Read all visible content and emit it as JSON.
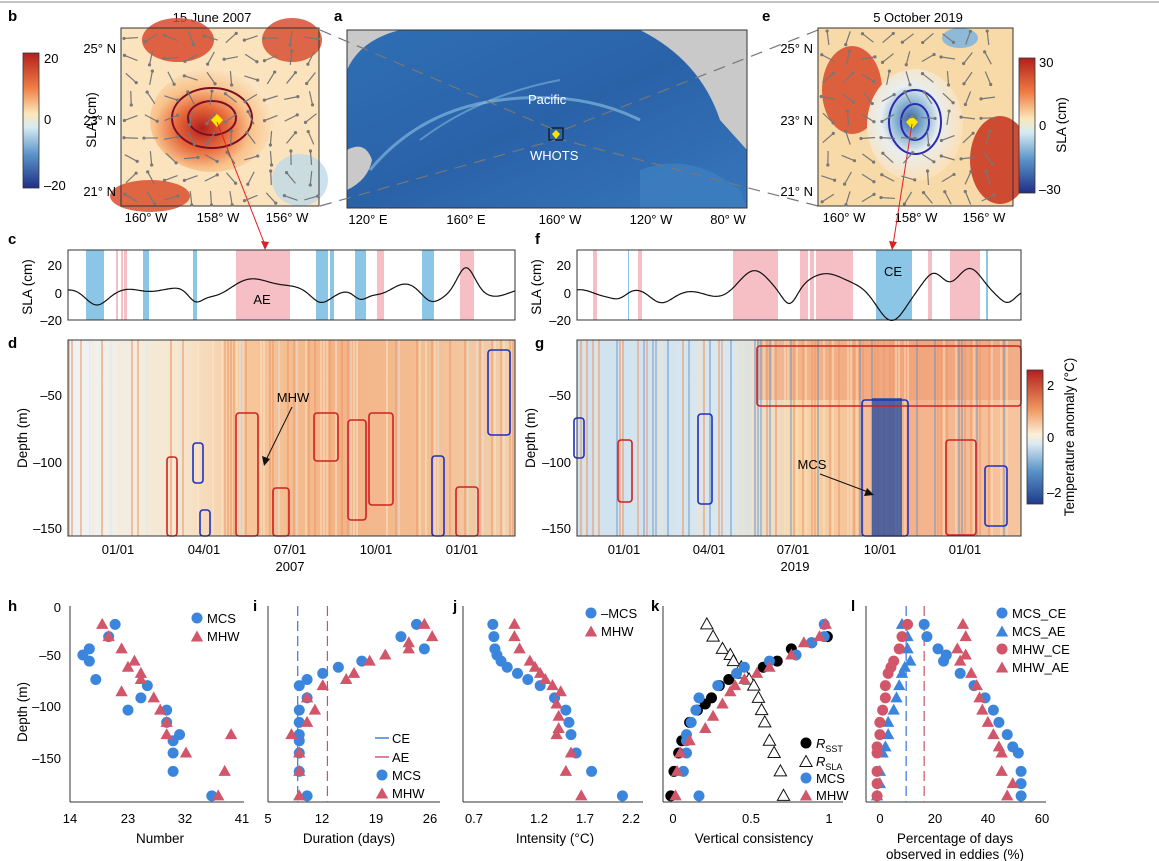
{
  "panels": {
    "a": {
      "letter": "a",
      "labels": [
        "Pacific",
        "WHOTS"
      ],
      "xticks": [
        "120° E",
        "160° E",
        "160° W",
        "120° W",
        "80° W"
      ]
    },
    "b": {
      "letter": "b",
      "date": "15 June 2007",
      "yticks": [
        "25° N",
        "23° N",
        "21° N"
      ],
      "xticks": [
        "160° W",
        "158° W",
        "156° W"
      ],
      "colorbar": {
        "label": "SLA (cm)",
        "ticks": [
          "20",
          "0",
          "–20"
        ]
      }
    },
    "e": {
      "letter": "e",
      "date": "5 October 2019",
      "yticks": [
        "25° N",
        "23° N",
        "21° N"
      ],
      "xticks": [
        "160° W",
        "158° W",
        "156° W"
      ],
      "colorbar": {
        "label": "SLA (cm)",
        "ticks": [
          "30",
          "0",
          "–30"
        ]
      }
    },
    "c": {
      "letter": "c",
      "ylabel": "SLA (cm)",
      "yticks": [
        "20",
        "0",
        "–20"
      ],
      "annotation": "AE"
    },
    "f": {
      "letter": "f",
      "ylabel": "SLA (cm)",
      "yticks": [
        "20",
        "0",
        "–20"
      ],
      "annotation": "CE"
    },
    "d": {
      "letter": "d",
      "ylabel": "Depth (m)",
      "yticks": [
        "–50",
        "–100",
        "–150"
      ],
      "xticks": [
        "01/01",
        "04/01",
        "07/01",
        "10/01",
        "01/01"
      ],
      "year": "2007",
      "annotation": "MHW"
    },
    "g": {
      "letter": "g",
      "ylabel": "Depth (m)",
      "yticks": [
        "–50",
        "–100",
        "–150"
      ],
      "xticks": [
        "01/01",
        "04/01",
        "07/01",
        "10/01",
        "01/01"
      ],
      "year": "2019",
      "annotation": "MCS",
      "colorbar": {
        "label": "Temperature anomaly (°C)",
        "ticks": [
          "2",
          "0",
          "–2"
        ]
      }
    },
    "h": {
      "letter": "h",
      "xlabel": "Number",
      "ylabel": "Depth (m)",
      "xticks": [
        "14",
        "23",
        "32",
        "41"
      ],
      "yticks": [
        "0",
        "–50",
        "–100",
        "–150"
      ],
      "legend": [
        "MCS",
        "MHW"
      ]
    },
    "i": {
      "letter": "i",
      "xlabel": "Duration (days)",
      "xticks": [
        "5",
        "12",
        "19",
        "26"
      ],
      "legend": [
        "CE",
        "AE",
        "MCS",
        "MHW"
      ]
    },
    "j": {
      "letter": "j",
      "xlabel": "Intensity (°C)",
      "xticks": [
        "0.7",
        "1.2",
        "1.7",
        "2.2"
      ],
      "legend": [
        "–MCS",
        "MHW"
      ]
    },
    "k": {
      "letter": "k",
      "xlabel": "Vertical consistency",
      "xticks": [
        "0",
        "0.5",
        "1"
      ],
      "legend": [
        {
          "main": "R",
          "sub": "SST"
        },
        {
          "main": "R",
          "sub": "SLA"
        },
        {
          "main": "MCS",
          "sub": ""
        },
        {
          "main": "MHW",
          "sub": ""
        }
      ]
    },
    "l": {
      "letter": "l",
      "xlabel": "Percentage of days",
      "xlabel2": "observed in eddies (%)",
      "xticks": [
        "0",
        "20",
        "40",
        "60"
      ],
      "legend": [
        "MCS_CE",
        "MCS_AE",
        "MHW_CE",
        "MHW_AE"
      ]
    }
  },
  "colors": {
    "mcs": "#3b86dc",
    "mhw": "#d1566a",
    "ce": "#3a73d9",
    "ae": "#c8536a",
    "eddyCE": "#8cc6e6",
    "eddyAE": "#f6bfc6"
  },
  "chart_data": [
    {
      "panel": "h",
      "type": "scatter",
      "xlim": [
        14,
        41
      ],
      "ylim": [
        -160,
        0
      ],
      "series": [
        {
          "name": "MCS",
          "marker": "circle",
          "x": [
            21,
            20,
            17,
            16,
            17,
            18,
            26,
            25,
            29,
            29,
            23,
            31,
            30,
            30,
            30,
            36
          ],
          "y": [
            -15,
            -25,
            -35,
            -40,
            -45,
            -60,
            -65,
            -75,
            -85,
            -95,
            -85,
            -105,
            -110,
            -120,
            -135,
            -155
          ]
        },
        {
          "name": "MHW",
          "marker": "triangle",
          "x": [
            19,
            20,
            22,
            24,
            23,
            25,
            25,
            22,
            27,
            28,
            29,
            29,
            39,
            32,
            38,
            37
          ],
          "y": [
            -15,
            -25,
            -35,
            -45,
            -50,
            -55,
            -60,
            -70,
            -75,
            -85,
            -95,
            -105,
            -105,
            -120,
            -135,
            -155
          ]
        }
      ]
    },
    {
      "panel": "i",
      "type": "scatter",
      "xlim": [
        5,
        27
      ],
      "ylim": [
        -160,
        0
      ],
      "vlines": [
        {
          "name": "CE",
          "x": 8.8
        },
        {
          "name": "AE",
          "x": 12.6
        }
      ],
      "series": [
        {
          "name": "MCS",
          "marker": "circle",
          "x": [
            24,
            22,
            25,
            17,
            14,
            12,
            10,
            9,
            10,
            9,
            9,
            9,
            9,
            9,
            9,
            10
          ],
          "y": [
            -15,
            -25,
            -35,
            -45,
            -50,
            -55,
            -60,
            -65,
            -75,
            -85,
            -95,
            -105,
            -110,
            -120,
            -135,
            -155
          ]
        },
        {
          "name": "MHW",
          "marker": "triangle",
          "x": [
            25,
            26,
            23,
            23,
            20,
            18,
            16,
            15,
            12,
            10,
            11,
            10,
            8,
            9,
            9,
            9
          ],
          "y": [
            -15,
            -25,
            -30,
            -35,
            -40,
            -45,
            -55,
            -60,
            -65,
            -75,
            -85,
            -95,
            -105,
            -120,
            -135,
            -155
          ]
        }
      ]
    },
    {
      "panel": "j",
      "type": "scatter",
      "xlim": [
        0.55,
        2.3
      ],
      "ylim": [
        -160,
        0
      ],
      "series": [
        {
          "name": "–MCS",
          "marker": "circle",
          "x": [
            0.84,
            0.85,
            0.86,
            0.88,
            0.92,
            0.98,
            1.08,
            1.18,
            1.3,
            1.44,
            1.55,
            1.58,
            1.6,
            1.65,
            1.8,
            2.1
          ],
          "y": [
            -15,
            -25,
            -35,
            -40,
            -45,
            -50,
            -55,
            -60,
            -65,
            -75,
            -85,
            -95,
            -105,
            -120,
            -135,
            -155
          ]
        },
        {
          "name": "MHW",
          "marker": "triangle",
          "x": [
            1.05,
            1.05,
            1.1,
            1.2,
            1.25,
            1.3,
            1.35,
            1.42,
            1.5,
            1.46,
            1.48,
            1.48,
            1.46,
            1.6,
            1.55,
            1.7
          ],
          "y": [
            -15,
            -25,
            -35,
            -45,
            -50,
            -55,
            -60,
            -65,
            -70,
            -80,
            -90,
            -100,
            -105,
            -120,
            -135,
            -155
          ]
        }
      ]
    },
    {
      "panel": "k",
      "type": "scatter",
      "xlim": [
        -0.05,
        1.1
      ],
      "ylim": [
        -160,
        0
      ],
      "series": [
        {
          "name": "RSST",
          "marker": "circle-filled",
          "x": [
            1,
            0.9,
            0.77,
            0.68,
            0.59,
            0.43,
            0.37,
            0.31,
            0.26,
            0.22,
            0.17,
            0.12,
            0.07,
            0.05,
            0.02,
            0
          ],
          "y": [
            -25,
            -30,
            -35,
            -45,
            -50,
            -55,
            -60,
            -65,
            -75,
            -80,
            -85,
            -95,
            -110,
            -120,
            -135,
            -155
          ]
        },
        {
          "name": "RSLA",
          "marker": "triangle-open",
          "x": [
            0.23,
            0.27,
            0.33,
            0.38,
            0.4,
            0.45,
            0.47,
            0.5,
            0.53,
            0.56,
            0.58,
            0.6,
            0.63,
            0.66,
            0.7,
            0.72
          ],
          "y": [
            -15,
            -25,
            -35,
            -40,
            -45,
            -50,
            -55,
            -60,
            -65,
            -75,
            -85,
            -95,
            -110,
            -120,
            -135,
            -155
          ]
        },
        {
          "name": "MCS",
          "marker": "circle",
          "x": [
            0.98,
            0.98,
            0.9,
            0.8,
            0.63,
            0.47,
            0.42,
            0.3,
            0.18,
            0.16,
            0.13,
            0.1,
            0.1,
            0.1,
            0.08,
            0.18
          ],
          "y": [
            -15,
            -25,
            -30,
            -40,
            -45,
            -50,
            -55,
            -65,
            -75,
            -85,
            -95,
            -105,
            -110,
            -120,
            -135,
            -155
          ]
        },
        {
          "name": "MHW",
          "marker": "triangle",
          "x": [
            0.99,
            0.95,
            0.85,
            0.77,
            0.63,
            0.55,
            0.47,
            0.41,
            0.38,
            0.33,
            0.27,
            0.22,
            0.12,
            0.06,
            0.04,
            0.03
          ],
          "y": [
            -15,
            -25,
            -30,
            -40,
            -50,
            -55,
            -60,
            -65,
            -70,
            -80,
            -90,
            -100,
            -110,
            -120,
            -135,
            -155
          ]
        }
      ]
    },
    {
      "panel": "l",
      "type": "scatter",
      "xlim": [
        -3,
        62
      ],
      "ylim": [
        -160,
        0
      ],
      "vlines": [
        {
          "name": "CE",
          "x": 11.5
        },
        {
          "name": "AE",
          "x": 18
        }
      ],
      "series": [
        {
          "name": "MCS_CE",
          "marker": "circle",
          "x": [
            18,
            19,
            23,
            26,
            25,
            31,
            36,
            40,
            43,
            45,
            48,
            50,
            52,
            53,
            53,
            53
          ],
          "y": [
            -15,
            -25,
            -35,
            -40,
            -45,
            -55,
            -65,
            -75,
            -85,
            -95,
            -105,
            -115,
            -120,
            -135,
            -145,
            -155
          ]
        },
        {
          "name": "MCS_AE",
          "marker": "triangle",
          "x": [
            10,
            12,
            12,
            13,
            11,
            10,
            9,
            8,
            7,
            5,
            5,
            4,
            3,
            2,
            2,
            1
          ],
          "y": [
            -15,
            -25,
            -35,
            -45,
            -50,
            -55,
            -65,
            -75,
            -85,
            -95,
            -105,
            -115,
            -120,
            -135,
            -145,
            -155
          ]
        },
        {
          "name": "MHW_CE",
          "marker": "circle-red",
          "x": [
            12,
            10,
            9,
            7,
            6,
            5,
            4,
            4,
            3,
            2,
            2,
            1,
            1,
            1,
            1,
            1
          ],
          "y": [
            -15,
            -25,
            -35,
            -45,
            -50,
            -55,
            -65,
            -75,
            -85,
            -95,
            -105,
            -115,
            -120,
            -135,
            -145,
            -155
          ]
        },
        {
          "name": "MHW_AE",
          "marker": "triangle-red",
          "x": [
            32,
            33,
            30,
            33,
            31,
            35,
            37,
            38,
            39,
            41,
            43,
            45,
            46,
            46,
            50,
            48
          ],
          "y": [
            -15,
            -25,
            -35,
            -40,
            -45,
            -55,
            -65,
            -75,
            -85,
            -95,
            -105,
            -115,
            -120,
            -135,
            -145,
            -155
          ]
        }
      ]
    }
  ]
}
